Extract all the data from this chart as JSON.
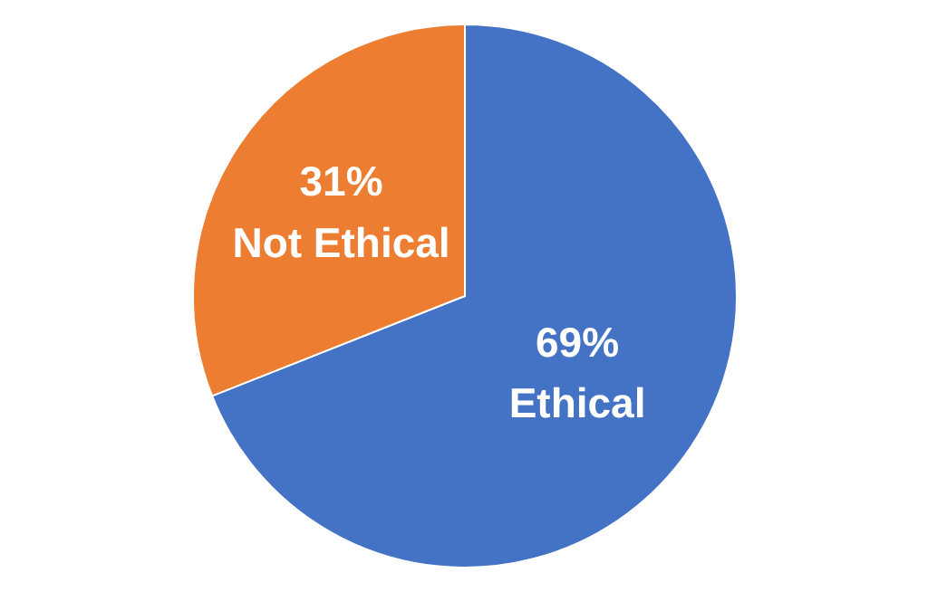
{
  "chart_data": {
    "type": "pie",
    "categories": [
      "Ethical",
      "Not Ethical"
    ],
    "values": [
      69,
      31
    ],
    "colors": [
      "#4472c4",
      "#ed7d31"
    ],
    "value_labels": [
      "69%",
      "31%"
    ],
    "legend": false
  }
}
